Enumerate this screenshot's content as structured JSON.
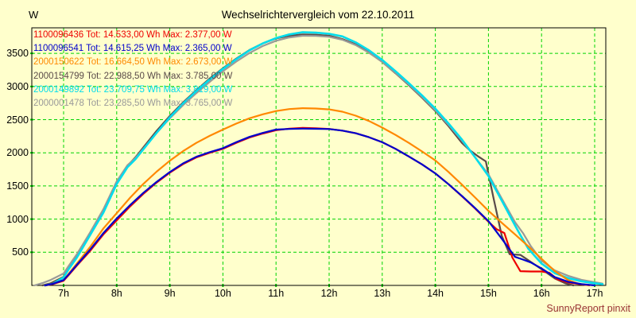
{
  "chart": {
    "title": "Wechselrichtervergleich vom 22.10.2011",
    "y_unit": "W",
    "watermark": "SunnyReport pinxit",
    "background_color": "#ffffcc",
    "grid_color": "#00d400",
    "frame_color": "#000000",
    "watermark_color": "#993333"
  },
  "chart_data": {
    "type": "line",
    "title": "Wechselrichtervergleich vom 22.10.2011",
    "xlabel": "",
    "ylabel": "W",
    "xlim": [
      6.4,
      17.2
    ],
    "ylim": [
      0,
      3885
    ],
    "grid": true,
    "grid_style": "dashed-green",
    "legend_position": "top-left-inside",
    "x_ticks": [
      {
        "value": 7,
        "label": "7h"
      },
      {
        "value": 8,
        "label": "8h"
      },
      {
        "value": 9,
        "label": "9h"
      },
      {
        "value": 10,
        "label": "10h"
      },
      {
        "value": 11,
        "label": "11h"
      },
      {
        "value": 12,
        "label": "12h"
      },
      {
        "value": 13,
        "label": "13h"
      },
      {
        "value": 14,
        "label": "14h"
      },
      {
        "value": 15,
        "label": "15h"
      },
      {
        "value": 16,
        "label": "16h"
      },
      {
        "value": 17,
        "label": "17h"
      }
    ],
    "y_ticks": [
      {
        "value": 500,
        "label": "500"
      },
      {
        "value": 1000,
        "label": "1000"
      },
      {
        "value": 1500,
        "label": "1500"
      },
      {
        "value": 2000,
        "label": "2000"
      },
      {
        "value": 2500,
        "label": "2500"
      },
      {
        "value": 3000,
        "label": "3000"
      },
      {
        "value": 3500,
        "label": "3500"
      }
    ],
    "series": [
      {
        "name": "2000154799",
        "tot_wh": "22.988,50",
        "max_w": "3.785,00",
        "label": "2000154799 Tot: 22.988,50 Wh Max: 3.785,00 W",
        "color": "#5a4a4a",
        "width": 2.2,
        "legend_order": 4,
        "points": [
          [
            6.6,
            0
          ],
          [
            6.75,
            30
          ],
          [
            7.0,
            130
          ],
          [
            7.1,
            260
          ],
          [
            7.25,
            440
          ],
          [
            7.5,
            790
          ],
          [
            7.75,
            1140
          ],
          [
            8.0,
            1560
          ],
          [
            8.2,
            1800
          ],
          [
            8.35,
            1930
          ],
          [
            8.5,
            2080
          ],
          [
            8.75,
            2330
          ],
          [
            9.0,
            2555
          ],
          [
            9.25,
            2760
          ],
          [
            9.5,
            2945
          ],
          [
            9.75,
            3120
          ],
          [
            10.0,
            3275
          ],
          [
            10.25,
            3420
          ],
          [
            10.5,
            3550
          ],
          [
            10.75,
            3650
          ],
          [
            11.0,
            3725
          ],
          [
            11.25,
            3765
          ],
          [
            11.5,
            3785
          ],
          [
            11.75,
            3780
          ],
          [
            12.0,
            3765
          ],
          [
            12.25,
            3715
          ],
          [
            12.5,
            3635
          ],
          [
            12.75,
            3515
          ],
          [
            13.0,
            3370
          ],
          [
            13.25,
            3200
          ],
          [
            13.5,
            3020
          ],
          [
            13.75,
            2830
          ],
          [
            14.0,
            2630
          ],
          [
            14.25,
            2400
          ],
          [
            14.5,
            2150
          ],
          [
            14.63,
            2050
          ],
          [
            14.8,
            1950
          ],
          [
            14.95,
            1870
          ],
          [
            15.1,
            1300
          ],
          [
            15.25,
            750
          ],
          [
            15.4,
            470
          ],
          [
            15.6,
            460
          ],
          [
            15.75,
            380
          ],
          [
            16.0,
            245
          ],
          [
            16.25,
            105
          ],
          [
            16.45,
            30
          ],
          [
            16.6,
            0
          ]
        ]
      },
      {
        "name": "2000001478",
        "tot_wh": "23.285,50",
        "max_w": "3.765,00",
        "label": "2000001478 Tot: 23.285,50 Wh Max: 3.765,00 W",
        "color": "#999999",
        "width": 2.2,
        "legend_order": 6,
        "points": [
          [
            6.45,
            0
          ],
          [
            6.6,
            35
          ],
          [
            6.75,
            80
          ],
          [
            7.0,
            180
          ],
          [
            7.1,
            300
          ],
          [
            7.25,
            470
          ],
          [
            7.5,
            800
          ],
          [
            7.75,
            1150
          ],
          [
            8.0,
            1570
          ],
          [
            8.2,
            1810
          ],
          [
            8.35,
            1920
          ],
          [
            8.5,
            2060
          ],
          [
            8.75,
            2300
          ],
          [
            9.0,
            2520
          ],
          [
            9.25,
            2720
          ],
          [
            9.5,
            2900
          ],
          [
            9.75,
            3070
          ],
          [
            10.0,
            3230
          ],
          [
            10.25,
            3375
          ],
          [
            10.5,
            3505
          ],
          [
            10.75,
            3610
          ],
          [
            11.0,
            3690
          ],
          [
            11.25,
            3740
          ],
          [
            11.5,
            3765
          ],
          [
            11.75,
            3762
          ],
          [
            12.0,
            3750
          ],
          [
            12.25,
            3705
          ],
          [
            12.5,
            3625
          ],
          [
            12.75,
            3510
          ],
          [
            13.0,
            3370
          ],
          [
            13.25,
            3205
          ],
          [
            13.5,
            3030
          ],
          [
            13.75,
            2840
          ],
          [
            14.0,
            2640
          ],
          [
            14.25,
            2420
          ],
          [
            14.5,
            2185
          ],
          [
            14.75,
            1930
          ],
          [
            15.0,
            1675
          ],
          [
            15.25,
            1310
          ],
          [
            15.5,
            955
          ],
          [
            15.65,
            790
          ],
          [
            15.8,
            590
          ],
          [
            16.0,
            375
          ],
          [
            16.25,
            225
          ],
          [
            16.5,
            145
          ],
          [
            16.75,
            85
          ],
          [
            17.0,
            48
          ],
          [
            17.15,
            28
          ]
        ]
      },
      {
        "name": "2000149892",
        "tot_wh": "23.709,75",
        "max_w": "3.819,00",
        "label": "2000149892 Tot: 23.709,75 Wh Max: 3.819,00 W",
        "color": "#00dcec",
        "width": 2.6,
        "legend_order": 5,
        "points": [
          [
            6.65,
            0
          ],
          [
            6.8,
            25
          ],
          [
            7.0,
            120
          ],
          [
            7.1,
            250
          ],
          [
            7.25,
            420
          ],
          [
            7.5,
            760
          ],
          [
            7.75,
            1100
          ],
          [
            8.0,
            1530
          ],
          [
            8.2,
            1780
          ],
          [
            8.35,
            1900
          ],
          [
            8.5,
            2050
          ],
          [
            8.75,
            2300
          ],
          [
            9.0,
            2535
          ],
          [
            9.25,
            2745
          ],
          [
            9.5,
            2930
          ],
          [
            9.75,
            3105
          ],
          [
            10.0,
            3265
          ],
          [
            10.25,
            3410
          ],
          [
            10.5,
            3545
          ],
          [
            10.75,
            3650
          ],
          [
            11.0,
            3730
          ],
          [
            11.25,
            3785
          ],
          [
            11.5,
            3819
          ],
          [
            11.75,
            3812
          ],
          [
            12.0,
            3795
          ],
          [
            12.25,
            3755
          ],
          [
            12.5,
            3665
          ],
          [
            12.75,
            3545
          ],
          [
            13.0,
            3400
          ],
          [
            13.25,
            3230
          ],
          [
            13.5,
            3050
          ],
          [
            13.75,
            2865
          ],
          [
            14.0,
            2665
          ],
          [
            14.25,
            2440
          ],
          [
            14.5,
            2200
          ],
          [
            14.75,
            1930
          ],
          [
            15.0,
            1650
          ],
          [
            15.25,
            1280
          ],
          [
            15.5,
            905
          ],
          [
            15.6,
            760
          ],
          [
            15.75,
            555
          ],
          [
            16.0,
            330
          ],
          [
            16.25,
            185
          ],
          [
            16.5,
            110
          ],
          [
            16.75,
            62
          ],
          [
            17.0,
            32
          ],
          [
            17.15,
            18
          ]
        ]
      },
      {
        "name": "2000150622",
        "tot_wh": "16.664,50",
        "max_w": "2.673,00",
        "label": "2000150622 Tot: 16.664,50 Wh Max: 2.673,00 W",
        "color": "#ff8800",
        "width": 2.2,
        "legend_order": 3,
        "points": [
          [
            6.65,
            0
          ],
          [
            6.8,
            25
          ],
          [
            7.0,
            80
          ],
          [
            7.1,
            180
          ],
          [
            7.25,
            330
          ],
          [
            7.5,
            580
          ],
          [
            7.75,
            860
          ],
          [
            8.0,
            1090
          ],
          [
            8.25,
            1320
          ],
          [
            8.5,
            1530
          ],
          [
            8.75,
            1715
          ],
          [
            9.0,
            1880
          ],
          [
            9.25,
            2025
          ],
          [
            9.5,
            2150
          ],
          [
            9.75,
            2255
          ],
          [
            10.0,
            2350
          ],
          [
            10.25,
            2440
          ],
          [
            10.5,
            2520
          ],
          [
            10.75,
            2580
          ],
          [
            11.0,
            2630
          ],
          [
            11.25,
            2660
          ],
          [
            11.5,
            2673
          ],
          [
            11.75,
            2668
          ],
          [
            12.0,
            2655
          ],
          [
            12.25,
            2620
          ],
          [
            12.5,
            2560
          ],
          [
            12.75,
            2480
          ],
          [
            13.0,
            2380
          ],
          [
            13.25,
            2270
          ],
          [
            13.5,
            2150
          ],
          [
            13.75,
            2020
          ],
          [
            14.0,
            1885
          ],
          [
            14.25,
            1710
          ],
          [
            14.5,
            1520
          ],
          [
            14.75,
            1325
          ],
          [
            15.0,
            1125
          ],
          [
            15.25,
            945
          ],
          [
            15.5,
            770
          ],
          [
            15.75,
            590
          ],
          [
            16.0,
            400
          ],
          [
            16.25,
            215
          ],
          [
            16.5,
            80
          ],
          [
            16.7,
            25
          ],
          [
            16.9,
            0
          ]
        ]
      },
      {
        "name": "1100096436",
        "tot_wh": "14.533,00",
        "max_w": "2.377,00",
        "label": "1100096436 Tot: 14.533,00 Wh Max: 2.377,00 W",
        "color": "#ee0000",
        "width": 2.2,
        "legend_order": 1,
        "points": [
          [
            6.65,
            0
          ],
          [
            6.8,
            20
          ],
          [
            7.0,
            70
          ],
          [
            7.1,
            160
          ],
          [
            7.25,
            300
          ],
          [
            7.5,
            520
          ],
          [
            7.75,
            770
          ],
          [
            8.0,
            980
          ],
          [
            8.25,
            1190
          ],
          [
            8.5,
            1380
          ],
          [
            8.75,
            1550
          ],
          [
            9.0,
            1700
          ],
          [
            9.25,
            1830
          ],
          [
            9.5,
            1930
          ],
          [
            9.75,
            2000
          ],
          [
            10.0,
            2060
          ],
          [
            10.25,
            2150
          ],
          [
            10.5,
            2230
          ],
          [
            10.75,
            2290
          ],
          [
            11.0,
            2340
          ],
          [
            11.25,
            2365
          ],
          [
            11.5,
            2377
          ],
          [
            11.75,
            2370
          ],
          [
            12.0,
            2360
          ],
          [
            12.25,
            2335
          ],
          [
            12.5,
            2295
          ],
          [
            12.75,
            2235
          ],
          [
            13.0,
            2160
          ],
          [
            13.25,
            2060
          ],
          [
            13.5,
            1945
          ],
          [
            13.75,
            1825
          ],
          [
            14.0,
            1690
          ],
          [
            14.25,
            1525
          ],
          [
            14.5,
            1345
          ],
          [
            14.75,
            1160
          ],
          [
            15.0,
            960
          ],
          [
            15.15,
            850
          ],
          [
            15.3,
            790
          ],
          [
            15.45,
            420
          ],
          [
            15.6,
            215
          ],
          [
            15.8,
            210
          ],
          [
            16.0,
            210
          ],
          [
            16.15,
            190
          ],
          [
            16.3,
            90
          ],
          [
            16.5,
            45
          ],
          [
            16.7,
            20
          ],
          [
            16.9,
            5
          ]
        ]
      },
      {
        "name": "1100096541",
        "tot_wh": "14.615,25",
        "max_w": "2.365,00",
        "label": "1100096541 Tot: 14.615,25 Wh Max: 2.365,00 W",
        "color": "#0000cc",
        "width": 2.2,
        "legend_order": 2,
        "points": [
          [
            6.65,
            0
          ],
          [
            6.8,
            25
          ],
          [
            7.0,
            80
          ],
          [
            7.1,
            170
          ],
          [
            7.25,
            310
          ],
          [
            7.5,
            540
          ],
          [
            7.75,
            790
          ],
          [
            8.0,
            1010
          ],
          [
            8.25,
            1210
          ],
          [
            8.5,
            1395
          ],
          [
            8.75,
            1560
          ],
          [
            9.0,
            1710
          ],
          [
            9.25,
            1840
          ],
          [
            9.5,
            1940
          ],
          [
            9.75,
            2010
          ],
          [
            10.0,
            2070
          ],
          [
            10.25,
            2160
          ],
          [
            10.5,
            2240
          ],
          [
            10.75,
            2300
          ],
          [
            11.0,
            2350
          ],
          [
            11.25,
            2360
          ],
          [
            11.5,
            2365
          ],
          [
            11.75,
            2362
          ],
          [
            12.0,
            2358
          ],
          [
            12.25,
            2335
          ],
          [
            12.5,
            2295
          ],
          [
            12.75,
            2235
          ],
          [
            13.0,
            2160
          ],
          [
            13.25,
            2060
          ],
          [
            13.5,
            1945
          ],
          [
            13.75,
            1825
          ],
          [
            14.0,
            1690
          ],
          [
            14.25,
            1525
          ],
          [
            14.5,
            1350
          ],
          [
            14.75,
            1165
          ],
          [
            15.0,
            970
          ],
          [
            15.25,
            705
          ],
          [
            15.5,
            430
          ],
          [
            15.65,
            390
          ],
          [
            15.8,
            345
          ],
          [
            16.0,
            255
          ],
          [
            16.25,
            125
          ],
          [
            16.5,
            55
          ],
          [
            16.75,
            20
          ],
          [
            17.0,
            0
          ]
        ]
      }
    ]
  }
}
